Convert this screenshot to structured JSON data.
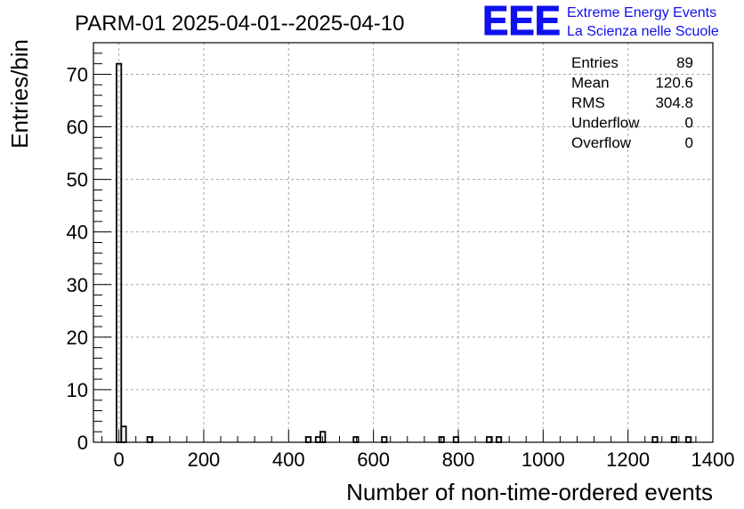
{
  "chart_data": {
    "type": "bar",
    "title": "PARM-01 2025-04-01--2025-04-10",
    "xlabel": "Number of non-time-ordered events",
    "ylabel": "Entries/bin",
    "xlim": [
      -60,
      1400
    ],
    "ylim": [
      0,
      76
    ],
    "bin_width": 11.2,
    "grid": true,
    "x_ticks": [
      0,
      200,
      400,
      600,
      800,
      1000,
      1200,
      1400
    ],
    "x_tick_labels": [
      "0",
      "200",
      "400",
      "600",
      "800",
      "1000",
      "1200",
      "1400"
    ],
    "y_ticks": [
      0,
      10,
      20,
      30,
      40,
      50,
      60,
      70
    ],
    "y_tick_labels": [
      "0",
      "10",
      "20",
      "30",
      "40",
      "50",
      "60",
      "70"
    ],
    "bins": [
      {
        "x": -5.6,
        "value": 72
      },
      {
        "x": 5.6,
        "value": 3
      },
      {
        "x": 67,
        "value": 1
      },
      {
        "x": 441,
        "value": 1
      },
      {
        "x": 464,
        "value": 1
      },
      {
        "x": 475,
        "value": 2
      },
      {
        "x": 553,
        "value": 1
      },
      {
        "x": 620,
        "value": 1
      },
      {
        "x": 755,
        "value": 1
      },
      {
        "x": 789,
        "value": 1
      },
      {
        "x": 867,
        "value": 1
      },
      {
        "x": 890,
        "value": 1
      },
      {
        "x": 1258,
        "value": 1
      },
      {
        "x": 1303,
        "value": 1
      },
      {
        "x": 1337,
        "value": 1
      }
    ],
    "stats": [
      {
        "label": "Entries",
        "value": "89"
      },
      {
        "label": "Mean",
        "value": "120.6"
      },
      {
        "label": "RMS",
        "value": "304.8"
      },
      {
        "label": "Underflow",
        "value": "0"
      },
      {
        "label": "Overflow",
        "value": "0"
      }
    ]
  },
  "logo": {
    "mark": "EEE",
    "line1": "Extreme Energy Events",
    "line2": "La Scienza nelle Scuole",
    "color": "#1010ee"
  }
}
